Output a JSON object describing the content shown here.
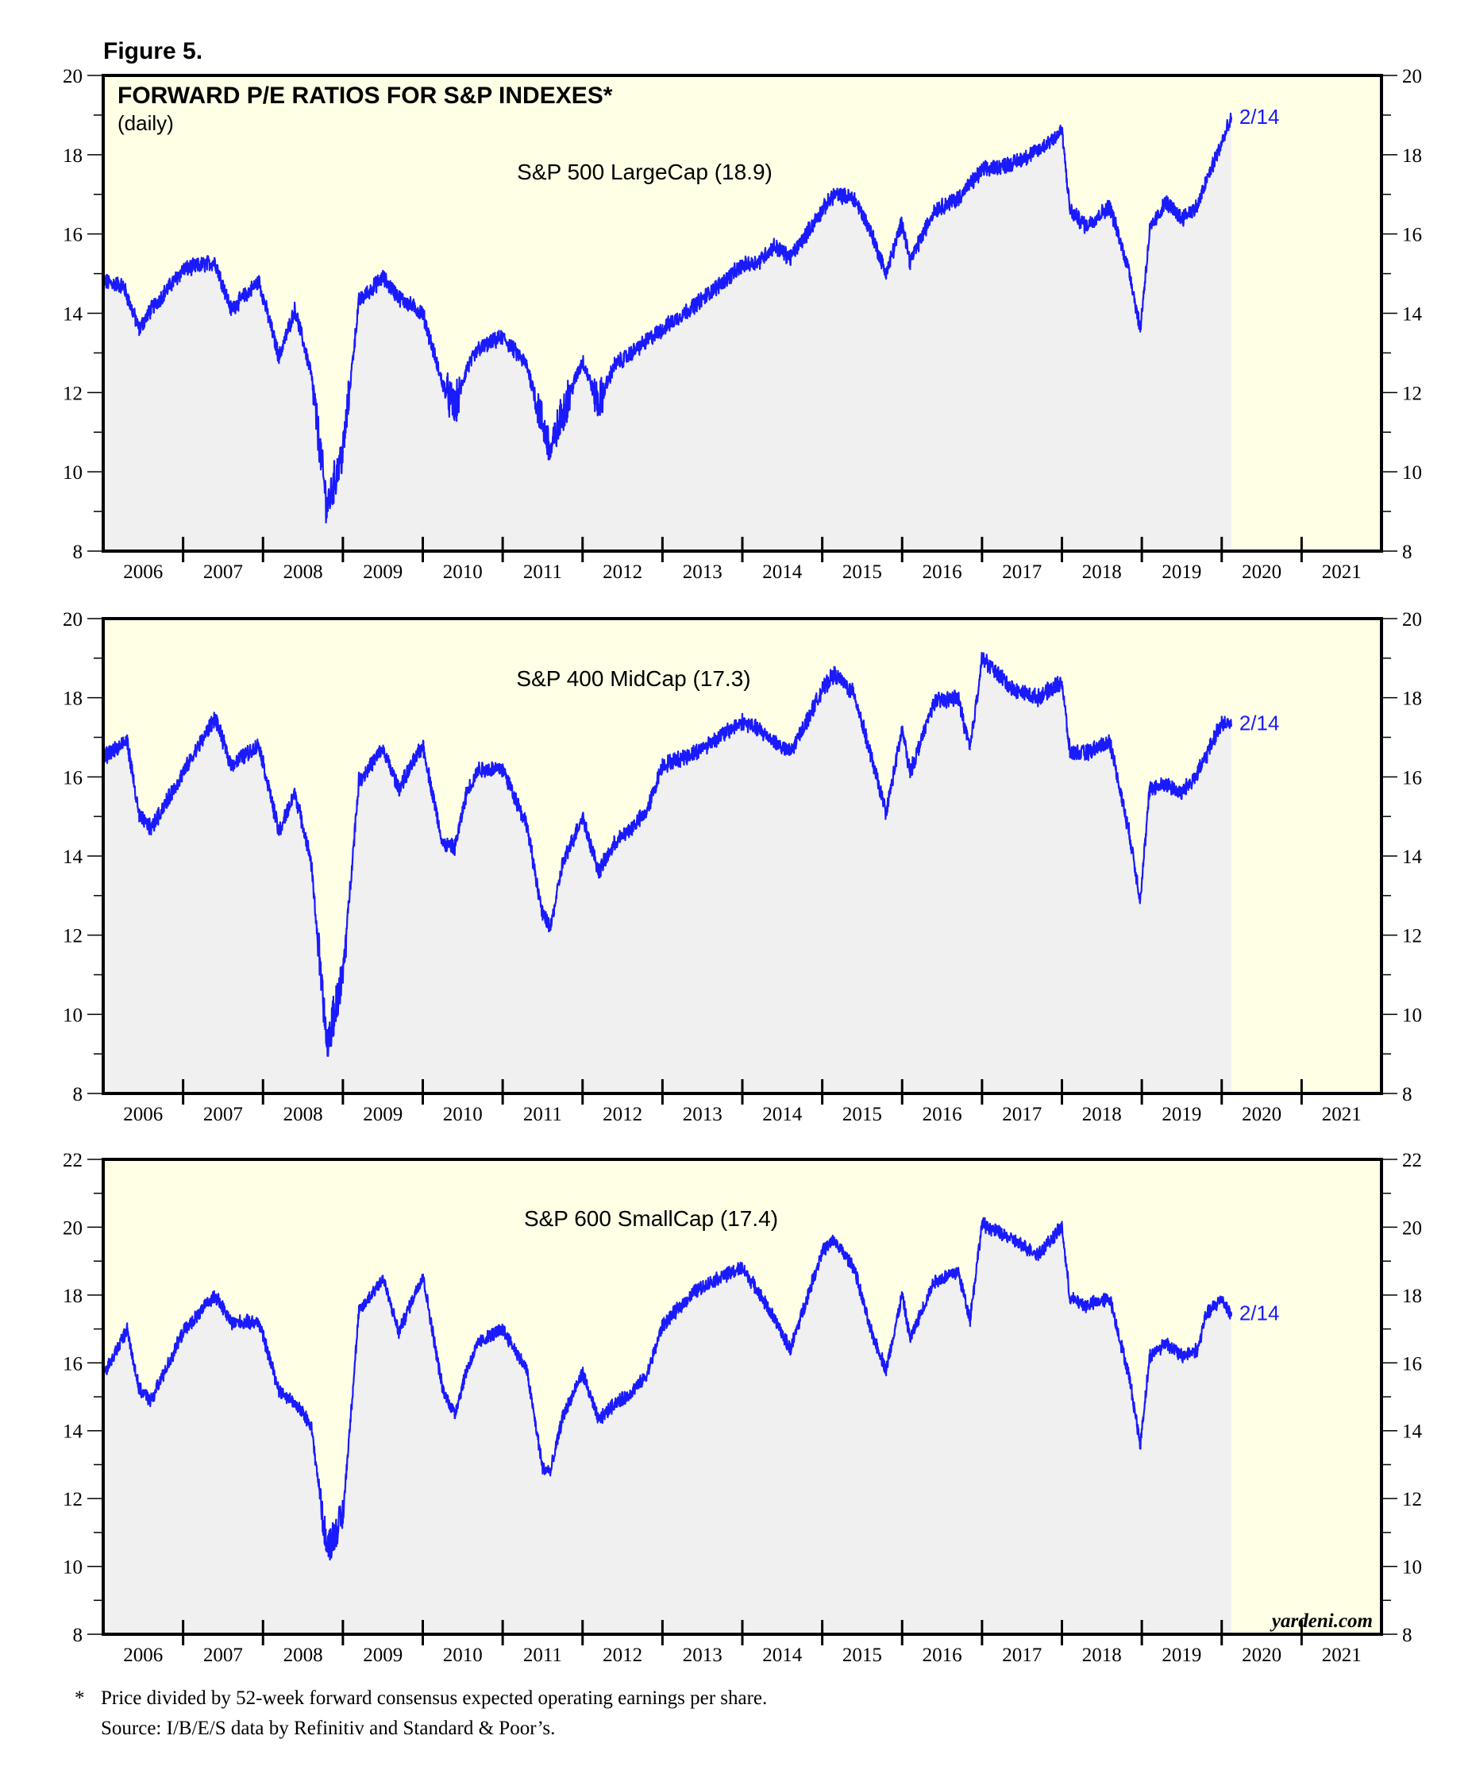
{
  "figure_label": "Figure 5.",
  "years": [
    "2006",
    "2007",
    "2008",
    "2009",
    "2010",
    "2011",
    "2012",
    "2013",
    "2014",
    "2015",
    "2016",
    "2017",
    "2018",
    "2019",
    "2020",
    "2021"
  ],
  "watermark": "yardeni.com",
  "footnote": {
    "marker": "*",
    "line1": "Price divided by 52-week forward consensus expected operating earnings per share.",
    "line2": "Source: I/B/E/S data by Refinitiv and Standard & Poor’s."
  },
  "colors": {
    "line": "#1a1aff",
    "date_label": "#1a1aff",
    "plot_background": "#ffffe6",
    "area_fill": "#f0f0f0",
    "frame": "#000000"
  },
  "chart_data": [
    {
      "type": "area",
      "title": "FORWARD P/E RATIOS FOR S&P INDEXES*",
      "subtitle": "(daily)",
      "series_label": "S&P 500 LargeCap (18.9)",
      "end_label": "2/14",
      "ylim": [
        8,
        20
      ],
      "y_ticks": [
        8,
        10,
        12,
        14,
        16,
        18,
        20
      ],
      "xlim": [
        2006.0,
        2022.0
      ],
      "grid": false,
      "axis_ticks_both_sides": true,
      "x": [
        2006.0,
        2006.25,
        2006.45,
        2006.6,
        2007.0,
        2007.4,
        2007.6,
        2007.95,
        2008.2,
        2008.4,
        2008.6,
        2008.8,
        2009.0,
        2009.2,
        2009.5,
        2009.7,
        2010.0,
        2010.25,
        2010.4,
        2010.55,
        2010.7,
        2011.0,
        2011.3,
        2011.5,
        2011.6,
        2011.75,
        2012.0,
        2012.2,
        2012.4,
        2012.55,
        2012.8,
        2013.0,
        2013.4,
        2013.7,
        2014.0,
        2014.2,
        2014.4,
        2014.6,
        2015.0,
        2015.15,
        2015.4,
        2015.6,
        2015.8,
        2016.0,
        2016.1,
        2016.4,
        2016.7,
        2017.0,
        2017.4,
        2017.7,
        2018.0,
        2018.1,
        2018.3,
        2018.6,
        2018.85,
        2018.98,
        2019.1,
        2019.3,
        2019.5,
        2019.7,
        2019.8,
        2020.0,
        2020.12
      ],
      "values": [
        14.8,
        14.7,
        13.6,
        14.1,
        15.1,
        15.3,
        14.1,
        14.8,
        12.9,
        14.1,
        12.5,
        9.1,
        10.5,
        14.3,
        14.9,
        14.4,
        14.0,
        12.2,
        11.6,
        12.6,
        13.1,
        13.4,
        12.7,
        11.2,
        10.5,
        11.5,
        12.8,
        11.7,
        12.7,
        12.9,
        13.3,
        13.6,
        14.2,
        14.7,
        15.2,
        15.3,
        15.7,
        15.4,
        16.6,
        17.0,
        16.9,
        16.1,
        15.0,
        16.3,
        15.3,
        16.6,
        16.9,
        17.6,
        17.8,
        18.1,
        18.6,
        16.6,
        16.2,
        16.7,
        15.0,
        13.6,
        16.1,
        16.8,
        16.4,
        16.7,
        17.3,
        18.3,
        18.9
      ]
    },
    {
      "type": "area",
      "title": "",
      "series_label": "S&P 400 MidCap (17.3)",
      "end_label": "2/14",
      "ylim": [
        8,
        20
      ],
      "y_ticks": [
        8,
        10,
        12,
        14,
        16,
        18,
        20
      ],
      "xlim": [
        2006.0,
        2022.0
      ],
      "grid": false,
      "axis_ticks_both_sides": true,
      "x": [
        2006.0,
        2006.3,
        2006.45,
        2006.6,
        2007.0,
        2007.4,
        2007.6,
        2007.95,
        2008.2,
        2008.4,
        2008.6,
        2008.8,
        2009.0,
        2009.2,
        2009.5,
        2009.7,
        2010.0,
        2010.25,
        2010.4,
        2010.55,
        2010.7,
        2011.0,
        2011.3,
        2011.5,
        2011.6,
        2011.75,
        2012.0,
        2012.2,
        2012.4,
        2012.55,
        2012.8,
        2013.0,
        2013.4,
        2013.7,
        2014.0,
        2014.2,
        2014.4,
        2014.6,
        2015.0,
        2015.15,
        2015.4,
        2015.6,
        2015.8,
        2016.0,
        2016.1,
        2016.4,
        2016.7,
        2016.85,
        2017.0,
        2017.4,
        2017.7,
        2018.0,
        2018.1,
        2018.3,
        2018.6,
        2018.85,
        2018.98,
        2019.1,
        2019.3,
        2019.5,
        2019.7,
        2019.8,
        2020.0,
        2020.12
      ],
      "values": [
        16.5,
        16.9,
        15.0,
        14.7,
        16.1,
        17.5,
        16.3,
        16.8,
        14.6,
        15.6,
        13.9,
        9.2,
        11.0,
        15.9,
        16.7,
        15.7,
        16.8,
        14.3,
        14.2,
        15.6,
        16.2,
        16.2,
        14.8,
        12.5,
        12.2,
        13.8,
        15.0,
        13.6,
        14.3,
        14.6,
        15.1,
        16.3,
        16.6,
        17.0,
        17.4,
        17.2,
        16.9,
        16.6,
        18.2,
        18.6,
        18.1,
        16.6,
        15.1,
        17.2,
        16.1,
        17.9,
        18.0,
        16.7,
        19.0,
        18.2,
        18.0,
        18.4,
        16.6,
        16.6,
        16.9,
        14.5,
        12.9,
        15.7,
        15.8,
        15.6,
        16.1,
        16.5,
        17.4,
        17.3
      ]
    },
    {
      "type": "area",
      "title": "",
      "series_label": "S&P 600 SmallCap (17.4)",
      "end_label": "2/14",
      "ylim": [
        8,
        22
      ],
      "y_ticks": [
        8,
        10,
        12,
        14,
        16,
        18,
        20,
        22
      ],
      "xlim": [
        2006.0,
        2022.0
      ],
      "grid": false,
      "axis_ticks_both_sides": true,
      "x": [
        2006.0,
        2006.3,
        2006.45,
        2006.6,
        2007.0,
        2007.4,
        2007.6,
        2007.95,
        2008.2,
        2008.4,
        2008.6,
        2008.8,
        2009.0,
        2009.2,
        2009.5,
        2009.7,
        2010.0,
        2010.25,
        2010.4,
        2010.55,
        2010.7,
        2011.0,
        2011.3,
        2011.5,
        2011.6,
        2011.75,
        2012.0,
        2012.2,
        2012.4,
        2012.55,
        2012.8,
        2013.0,
        2013.4,
        2013.7,
        2014.0,
        2014.2,
        2014.4,
        2014.6,
        2015.0,
        2015.15,
        2015.4,
        2015.6,
        2015.8,
        2016.0,
        2016.1,
        2016.4,
        2016.7,
        2016.85,
        2017.0,
        2017.4,
        2017.7,
        2018.0,
        2018.1,
        2018.3,
        2018.6,
        2018.85,
        2018.98,
        2019.1,
        2019.3,
        2019.5,
        2019.7,
        2019.8,
        2020.0,
        2020.12
      ],
      "values": [
        15.6,
        17.0,
        15.2,
        14.9,
        16.9,
        18.0,
        17.2,
        17.2,
        15.2,
        14.8,
        14.2,
        10.5,
        11.5,
        17.5,
        18.5,
        16.9,
        18.6,
        15.2,
        14.5,
        15.8,
        16.6,
        17.0,
        15.8,
        12.9,
        12.8,
        14.4,
        15.7,
        14.3,
        14.8,
        15.0,
        15.6,
        17.1,
        18.1,
        18.5,
        18.8,
        18.1,
        17.3,
        16.4,
        19.3,
        19.6,
        18.8,
        17.0,
        15.8,
        18.0,
        16.7,
        18.4,
        18.7,
        17.3,
        20.1,
        19.6,
        19.2,
        20.0,
        17.9,
        17.7,
        17.9,
        15.5,
        13.6,
        16.2,
        16.6,
        16.2,
        16.4,
        17.4,
        17.9,
        17.4
      ]
    }
  ]
}
